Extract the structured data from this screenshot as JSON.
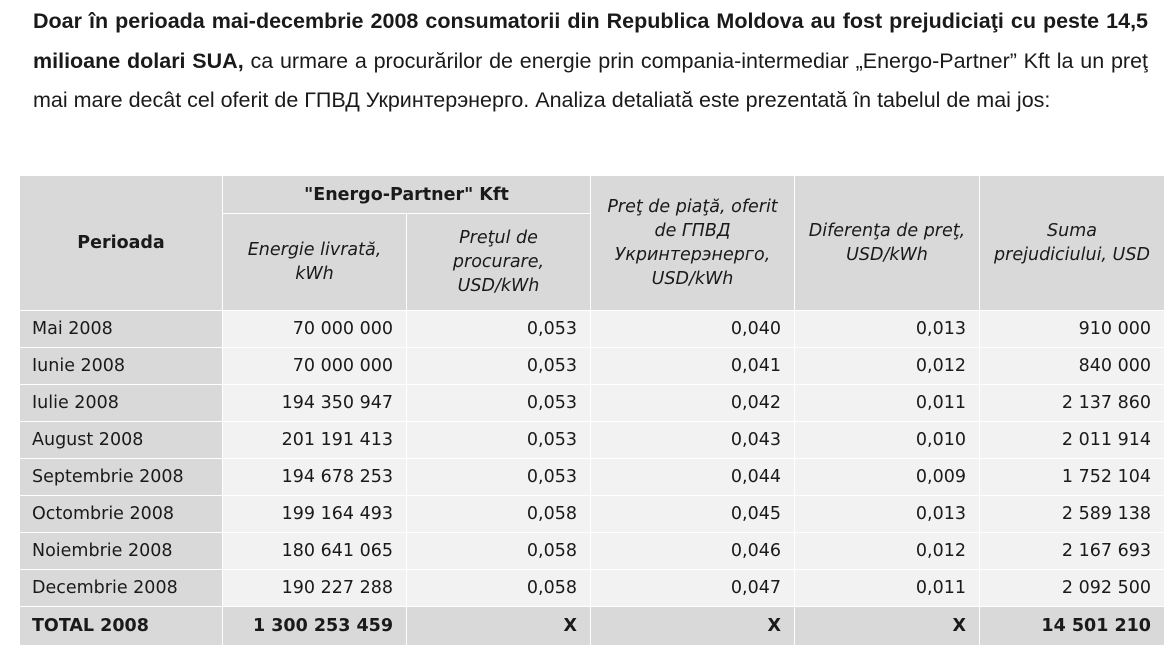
{
  "intro": {
    "bold_part": "Doar în perioada mai-decembrie 2008 consumatorii din Republica Moldova au fost prejudiciaţi cu peste 14,5 milioane dolari SUA,",
    "rest_part": " ca urmare a procurărilor de energie prin compania-intermediar „Energo-Partner” Kft la un preţ mai mare decât cel oferit de ГПВД Укринтерэнерго. Analiza detaliată este prezentată în tabelul de mai jos:"
  },
  "table": {
    "headers": {
      "period": "Perioada",
      "group": "\"Energo-Partner\" Kft",
      "energy": "Energie livrată, kWh",
      "purchase_price": "Preţul de procurare, USD/kWh",
      "market_price": "Preţ de piaţă, oferit de ГПВД Укринтерэнерго, USD/kWh",
      "difference": "Diferenţa de preţ, USD/kWh",
      "damage": "Suma prejudiciului, USD"
    },
    "rows": [
      {
        "period": "Mai 2008",
        "energy": "70 000 000",
        "purchase_price": "0,053",
        "market_price": "0,040",
        "difference": "0,013",
        "damage": "910 000"
      },
      {
        "period": "Iunie 2008",
        "energy": "70 000 000",
        "purchase_price": "0,053",
        "market_price": "0,041",
        "difference": "0,012",
        "damage": "840 000"
      },
      {
        "period": "Iulie 2008",
        "energy": "194 350 947",
        "purchase_price": "0,053",
        "market_price": "0,042",
        "difference": "0,011",
        "damage": "2 137 860"
      },
      {
        "period": "August 2008",
        "energy": "201 191 413",
        "purchase_price": "0,053",
        "market_price": "0,043",
        "difference": "0,010",
        "damage": "2 011 914"
      },
      {
        "period": "Septembrie 2008",
        "energy": "194 678 253",
        "purchase_price": "0,053",
        "market_price": "0,044",
        "difference": "0,009",
        "damage": "1 752 104"
      },
      {
        "period": "Octombrie 2008",
        "energy": "199 164 493",
        "purchase_price": "0,058",
        "market_price": "0,045",
        "difference": "0,013",
        "damage": "2 589 138"
      },
      {
        "period": "Noiembrie 2008",
        "energy": "180 641 065",
        "purchase_price": "0,058",
        "market_price": "0,046",
        "difference": "0,012",
        "damage": "2 167 693"
      },
      {
        "period": "Decembrie 2008",
        "energy": "190 227 288",
        "purchase_price": "0,058",
        "market_price": "0,047",
        "difference": "0,011",
        "damage": "2 092 500"
      }
    ],
    "total": {
      "period": "TOTAL 2008",
      "energy": "1 300 253 459",
      "purchase_price": "X",
      "market_price": "X",
      "difference": "X",
      "damage": "14 501 210"
    }
  },
  "colors": {
    "header_bg": "#d9d9d9",
    "cell_bg": "#f2f2f2",
    "text": "#1a1a1a"
  }
}
